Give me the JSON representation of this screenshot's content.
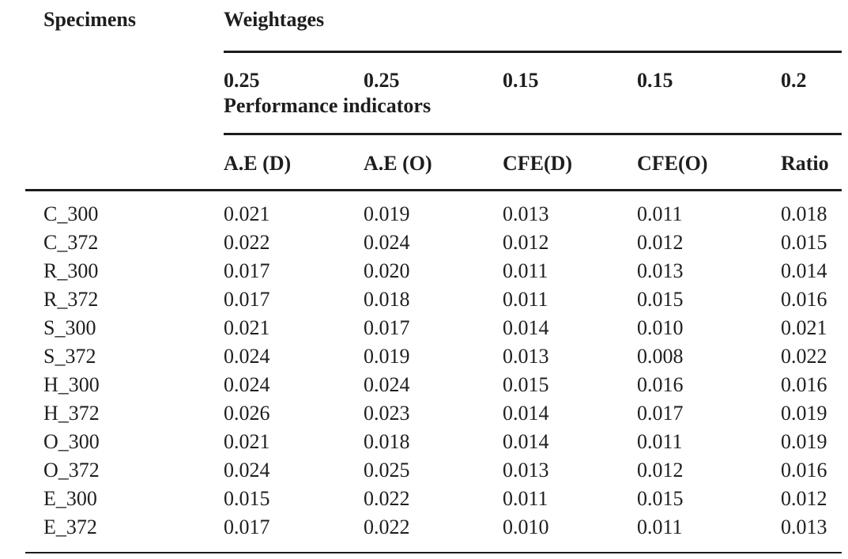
{
  "table": {
    "header": {
      "specimens_label": "Specimens",
      "weightages_label": "Weightages",
      "weights": [
        "0.25",
        "0.25",
        "0.15",
        "0.15",
        "0.2"
      ],
      "performance_label": "Performance indicators",
      "indicator_columns": [
        "A.E (D)",
        "A.E (O)",
        "CFE(D)",
        "CFE(O)",
        "Ratio"
      ]
    },
    "rows": [
      {
        "specimen": "C_300",
        "values": [
          "0.021",
          "0.019",
          "0.013",
          "0.011",
          "0.018"
        ]
      },
      {
        "specimen": "C_372",
        "values": [
          "0.022",
          "0.024",
          "0.012",
          "0.012",
          "0.015"
        ]
      },
      {
        "specimen": "R_300",
        "values": [
          "0.017",
          "0.020",
          "0.011",
          "0.013",
          "0.014"
        ]
      },
      {
        "specimen": "R_372",
        "values": [
          "0.017",
          "0.018",
          "0.011",
          "0.015",
          "0.016"
        ]
      },
      {
        "specimen": "S_300",
        "values": [
          "0.021",
          "0.017",
          "0.014",
          "0.010",
          "0.021"
        ]
      },
      {
        "specimen": "S_372",
        "values": [
          "0.024",
          "0.019",
          "0.013",
          "0.008",
          "0.022"
        ]
      },
      {
        "specimen": "H_300",
        "values": [
          "0.024",
          "0.024",
          "0.015",
          "0.016",
          "0.016"
        ]
      },
      {
        "specimen": "H_372",
        "values": [
          "0.026",
          "0.023",
          "0.014",
          "0.017",
          "0.019"
        ]
      },
      {
        "specimen": "O_300",
        "values": [
          "0.021",
          "0.018",
          "0.014",
          "0.011",
          "0.019"
        ]
      },
      {
        "specimen": "O_372",
        "values": [
          "0.024",
          "0.025",
          "0.013",
          "0.012",
          "0.016"
        ]
      },
      {
        "specimen": "E_300",
        "values": [
          "0.015",
          "0.022",
          "0.011",
          "0.015",
          "0.012"
        ]
      },
      {
        "specimen": "E_372",
        "values": [
          "0.017",
          "0.022",
          "0.010",
          "0.011",
          "0.013"
        ]
      }
    ],
    "colors": {
      "text": "#1e1e1e",
      "rule": "#1c1c1c",
      "background": "#ffffff"
    }
  }
}
